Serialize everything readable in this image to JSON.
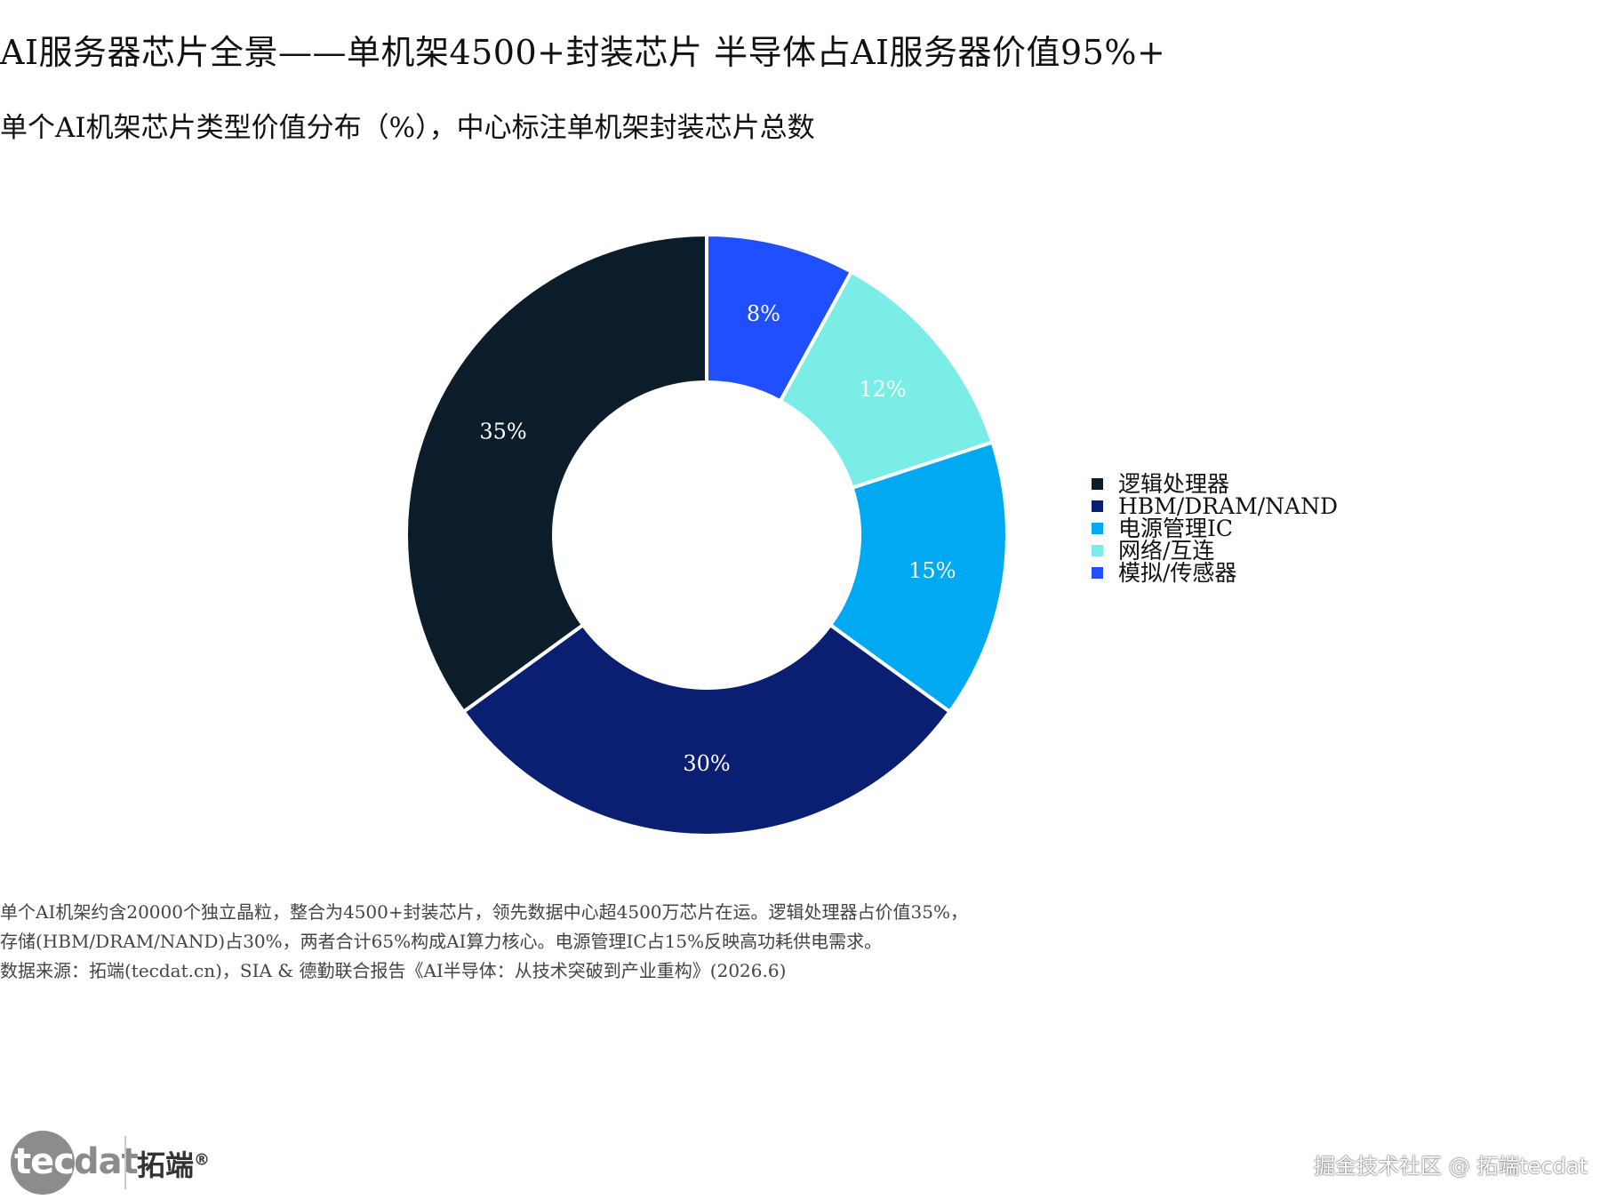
{
  "header": {
    "title": "AI服务器芯片全景——单机架4500+封装芯片   半导体占AI服务器价值95%+",
    "subtitle": "单个AI机架芯片类型价值分布（%），中心标注单机架封装芯片总数"
  },
  "chart_data": {
    "type": "pie",
    "donut": true,
    "title": "AI服务器芯片全景——单机架4500+封装芯片   半导体占AI服务器价值95%+",
    "subtitle": "单个AI机架芯片类型价值分布（%），中心标注单机架封装芯片总数",
    "unit": "%",
    "start_angle": "12 o'clock",
    "direction": "clockwise",
    "slices": [
      {
        "label": "模拟/传感器",
        "value": 8,
        "color": "#1f4fff",
        "value_label": "8%"
      },
      {
        "label": "网络/互连",
        "value": 12,
        "color": "#79ede6",
        "value_label": "12%"
      },
      {
        "label": "电源管理IC",
        "value": 15,
        "color": "#00a9f1",
        "value_label": "15%"
      },
      {
        "label": "HBM/DRAM/NAND",
        "value": 30,
        "color": "#0a1e72",
        "value_label": "30%"
      },
      {
        "label": "逻辑处理器",
        "value": 35,
        "color": "#0b1c2a",
        "value_label": "35%"
      }
    ],
    "legend": {
      "placement": "right",
      "entries": [
        {
          "label": "逻辑处理器",
          "color": "#0b1c2a"
        },
        {
          "label": "HBM/DRAM/NAND",
          "color": "#0a1e72"
        },
        {
          "label": "电源管理IC",
          "color": "#00a9f1"
        },
        {
          "label": "网络/互连",
          "color": "#79ede6"
        },
        {
          "label": "模拟/传感器",
          "color": "#1f4fff"
        }
      ]
    }
  },
  "footnote": {
    "line1": "单个AI机架约含20000个独立晶粒，整合为4500+封装芯片，领先数据中心超4500万芯片在运。逻辑处理器占价值35%，",
    "line2": "存储(HBM/DRAM/NAND)占30%，两者合计65%构成AI算力核心。电源管理IC占15%反映高功耗供电需求。",
    "line3": "数据来源：拓端(tecdat.cn)，SIA & 德勤联合报告《AI半导体：从技术突破到产业重构》(2026.6)"
  },
  "branding": {
    "logo_text_head": "tec",
    "logo_text_tail": "dat",
    "logo_cn": "拓端",
    "logo_mark": "®",
    "watermark": "掘金技术社区 @ 拓端tecdat"
  }
}
